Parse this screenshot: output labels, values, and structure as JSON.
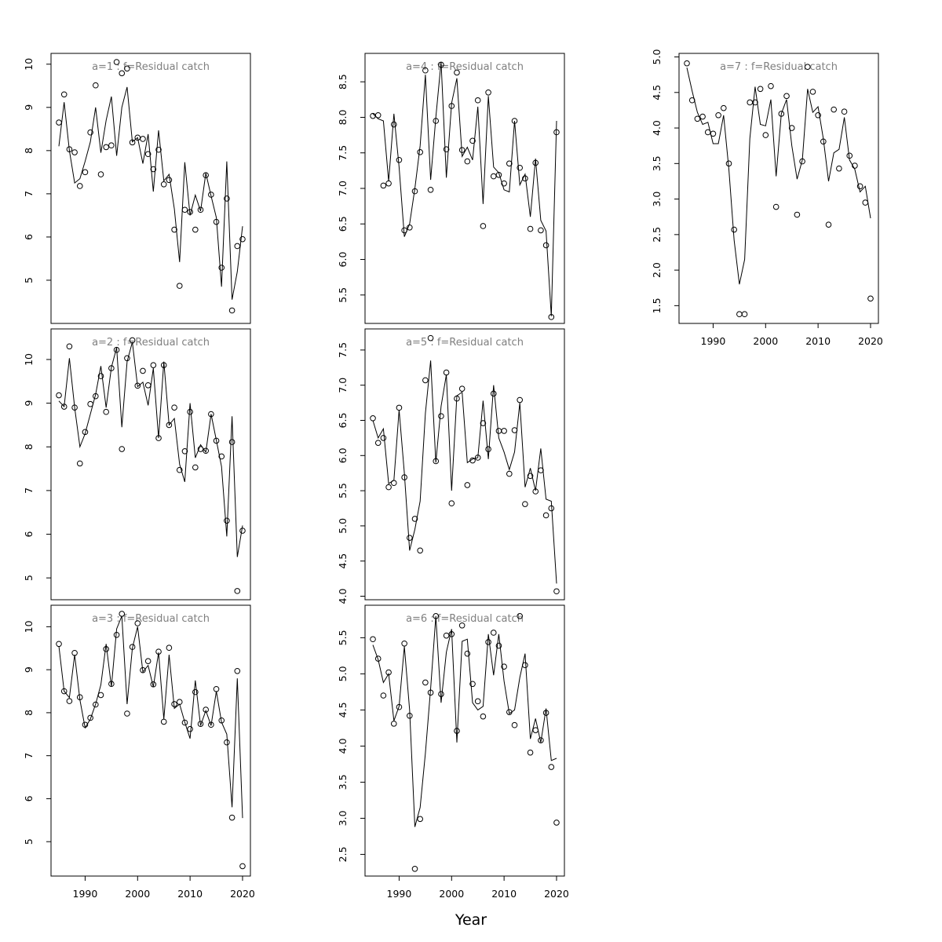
{
  "xlabel": "Year",
  "colors": {
    "line": "#000000",
    "point": "#000000",
    "title": "#7f7f7f",
    "frame": "#000000"
  },
  "chart_data": [
    {
      "type": "line+scatter",
      "title": "a=1  :  f=Residual catch",
      "xlabel": "",
      "ylabel": "",
      "xlim": [
        1983.5,
        2021.5
      ],
      "ylim": [
        4.0,
        10.25
      ],
      "yticks": [
        5,
        6,
        7,
        8,
        9,
        10
      ],
      "xticks": [],
      "observed": {
        "x": [
          1985,
          1986,
          1987,
          1988,
          1989,
          1990,
          1991,
          1992,
          1993,
          1994,
          1995,
          1996,
          1997,
          1998,
          1999,
          2000,
          2001,
          2002,
          2003,
          2004,
          2005,
          2006,
          2007,
          2008,
          2009,
          2010,
          2011,
          2012,
          2013,
          2014,
          2015,
          2016,
          2017,
          2018,
          2019,
          2020
        ],
        "y": [
          8.65,
          9.3,
          8.03,
          7.96,
          7.18,
          7.5,
          8.42,
          9.51,
          7.45,
          8.08,
          8.12,
          10.05,
          9.79,
          9.9,
          8.19,
          8.3,
          8.27,
          7.92,
          7.57,
          8.02,
          7.22,
          7.32,
          6.17,
          4.87,
          6.63,
          6.58,
          6.17,
          6.63,
          7.43,
          6.98,
          6.35,
          5.29,
          6.89,
          4.3,
          5.79,
          5.95
        ]
      },
      "fitted": {
        "x": [
          1985,
          1986,
          1987,
          1988,
          1989,
          1990,
          1991,
          1992,
          1993,
          1994,
          1995,
          1996,
          1997,
          1998,
          1999,
          2000,
          2001,
          2002,
          2003,
          2004,
          2005,
          2006,
          2007,
          2008,
          2009,
          2010,
          2011,
          2012,
          2013,
          2014,
          2015,
          2016,
          2017,
          2018,
          2019,
          2020
        ],
        "y": [
          8.1,
          9.12,
          8.0,
          7.25,
          7.35,
          7.75,
          8.2,
          9.0,
          7.95,
          8.7,
          9.25,
          7.88,
          9.0,
          9.47,
          8.2,
          8.3,
          7.7,
          8.38,
          7.05,
          8.47,
          7.3,
          7.45,
          6.65,
          5.42,
          7.73,
          6.5,
          6.97,
          6.6,
          7.48,
          6.95,
          6.45,
          4.85,
          7.75,
          4.55,
          5.2,
          6.25
        ]
      }
    },
    {
      "type": "line+scatter",
      "title": "a=2  :  f=Residual catch",
      "xlabel": "",
      "ylabel": "",
      "xlim": [
        1983.5,
        2021.5
      ],
      "ylim": [
        4.5,
        10.7
      ],
      "yticks": [
        5,
        6,
        7,
        8,
        9,
        10
      ],
      "xticks": [],
      "observed": {
        "x": [
          1985,
          1986,
          1987,
          1988,
          1989,
          1990,
          1991,
          1992,
          1993,
          1994,
          1995,
          1996,
          1997,
          1998,
          1999,
          2000,
          2001,
          2002,
          2003,
          2004,
          2005,
          2006,
          2007,
          2008,
          2009,
          2010,
          2011,
          2012,
          2013,
          2014,
          2015,
          2016,
          2017,
          2018,
          2019,
          2020
        ],
        "y": [
          9.18,
          8.92,
          10.3,
          8.9,
          7.62,
          8.34,
          8.98,
          9.16,
          9.62,
          8.8,
          9.8,
          10.22,
          7.95,
          10.03,
          10.44,
          9.4,
          9.74,
          9.41,
          9.87,
          8.2,
          9.87,
          8.5,
          8.9,
          7.47,
          7.9,
          8.8,
          7.53,
          7.95,
          7.91,
          8.75,
          8.14,
          7.78,
          6.31,
          8.11,
          4.7,
          6.08
        ]
      },
      "fitted": {
        "x": [
          1985,
          1986,
          1987,
          1988,
          1989,
          1990,
          1991,
          1992,
          1993,
          1994,
          1995,
          1996,
          1997,
          1998,
          1999,
          2000,
          2001,
          2002,
          2003,
          2004,
          2005,
          2006,
          2007,
          2008,
          2009,
          2010,
          2011,
          2012,
          2013,
          2014,
          2015,
          2016,
          2017,
          2018,
          2019,
          2020
        ],
        "y": [
          9.05,
          8.92,
          10.03,
          8.9,
          8.0,
          8.3,
          8.75,
          9.2,
          9.85,
          8.9,
          9.82,
          10.27,
          8.45,
          9.95,
          10.4,
          9.38,
          9.48,
          8.95,
          9.8,
          8.2,
          9.95,
          8.5,
          8.65,
          7.6,
          7.2,
          9.0,
          7.75,
          8.05,
          7.88,
          8.75,
          8.15,
          7.55,
          5.95,
          8.7,
          5.48,
          6.2
        ]
      }
    },
    {
      "type": "line+scatter",
      "title": "a=3  :  f=Residual catch",
      "xlabel": "",
      "ylabel": "",
      "xlim": [
        1983.5,
        2021.5
      ],
      "ylim": [
        4.2,
        10.5
      ],
      "yticks": [
        5,
        6,
        7,
        8,
        9,
        10
      ],
      "xticks": [
        1990,
        2000,
        2010,
        2020
      ],
      "observed": {
        "x": [
          1985,
          1986,
          1987,
          1988,
          1989,
          1990,
          1991,
          1992,
          1993,
          1994,
          1995,
          1996,
          1997,
          1998,
          1999,
          2000,
          2001,
          2002,
          2003,
          2004,
          2005,
          2006,
          2007,
          2008,
          2009,
          2010,
          2011,
          2012,
          2013,
          2014,
          2015,
          2016,
          2017,
          2018,
          2019,
          2020
        ],
        "y": [
          9.6,
          8.5,
          8.27,
          9.39,
          8.36,
          7.72,
          7.88,
          8.19,
          8.41,
          9.48,
          8.67,
          9.81,
          10.3,
          7.98,
          9.53,
          10.08,
          8.99,
          9.2,
          8.66,
          9.42,
          7.79,
          9.51,
          8.2,
          8.25,
          7.77,
          7.62,
          8.48,
          7.74,
          8.07,
          7.72,
          8.55,
          7.82,
          7.31,
          5.56,
          8.97,
          4.43
        ]
      },
      "fitted": {
        "x": [
          1985,
          1986,
          1987,
          1988,
          1989,
          1990,
          1991,
          1992,
          1993,
          1994,
          1995,
          1996,
          1997,
          1998,
          1999,
          2000,
          2001,
          2002,
          2003,
          2004,
          2005,
          2006,
          2007,
          2008,
          2009,
          2010,
          2011,
          2012,
          2013,
          2014,
          2015,
          2016,
          2017,
          2018,
          2019,
          2020
        ],
        "y": [
          9.55,
          8.5,
          8.35,
          9.35,
          8.3,
          7.65,
          7.85,
          8.2,
          8.65,
          9.6,
          8.6,
          9.95,
          10.25,
          8.2,
          9.5,
          10.0,
          8.95,
          9.1,
          8.6,
          9.4,
          7.85,
          9.35,
          8.1,
          8.2,
          7.78,
          7.4,
          8.75,
          7.7,
          8.05,
          7.7,
          8.5,
          7.78,
          7.5,
          5.8,
          8.8,
          5.55
        ]
      }
    },
    {
      "type": "line+scatter",
      "title": "a=4  :  f=Residual catch",
      "xlabel": "",
      "ylabel": "",
      "xlim": [
        1983.5,
        2021.5
      ],
      "ylim": [
        5.1,
        8.9
      ],
      "yticks": [
        5.5,
        6.0,
        6.5,
        7.0,
        7.5,
        8.0,
        8.5
      ],
      "xticks": [],
      "observed": {
        "x": [
          1985,
          1986,
          1987,
          1988,
          1989,
          1990,
          1991,
          1992,
          1993,
          1994,
          1995,
          1996,
          1997,
          1998,
          1999,
          2000,
          2001,
          2002,
          2003,
          2004,
          2005,
          2006,
          2007,
          2008,
          2009,
          2010,
          2011,
          2012,
          2013,
          2014,
          2015,
          2016,
          2017,
          2018,
          2019,
          2020
        ],
        "y": [
          8.02,
          8.03,
          7.04,
          7.07,
          7.9,
          7.4,
          6.41,
          6.45,
          6.96,
          7.51,
          8.66,
          6.98,
          7.95,
          8.74,
          7.55,
          8.16,
          8.63,
          7.54,
          7.38,
          7.67,
          8.24,
          6.47,
          8.35,
          7.17,
          7.19,
          7.07,
          7.35,
          7.95,
          7.29,
          7.14,
          6.43,
          7.36,
          6.41,
          6.2,
          5.19,
          7.79
        ]
      },
      "fitted": {
        "x": [
          1985,
          1986,
          1987,
          1988,
          1989,
          1990,
          1991,
          1992,
          1993,
          1994,
          1995,
          1996,
          1997,
          1998,
          1999,
          2000,
          2001,
          2002,
          2003,
          2004,
          2005,
          2006,
          2007,
          2008,
          2009,
          2010,
          2011,
          2012,
          2013,
          2014,
          2015,
          2016,
          2017,
          2018,
          2019,
          2020
        ],
        "y": [
          8.05,
          7.98,
          7.95,
          7.1,
          8.05,
          7.3,
          6.32,
          6.5,
          7.0,
          7.6,
          8.6,
          7.12,
          8.0,
          8.78,
          7.15,
          8.2,
          8.55,
          7.45,
          7.58,
          7.4,
          8.15,
          6.78,
          8.3,
          7.3,
          7.22,
          6.98,
          6.95,
          7.95,
          7.05,
          7.2,
          6.6,
          7.42,
          6.55,
          6.4,
          5.2,
          7.95
        ]
      }
    },
    {
      "type": "line+scatter",
      "title": "a=5  :  f=Residual catch",
      "xlabel": "",
      "ylabel": "",
      "xlim": [
        1983.5,
        2021.5
      ],
      "ylim": [
        3.95,
        7.8
      ],
      "yticks": [
        4.0,
        4.5,
        5.0,
        5.5,
        6.0,
        6.5,
        7.0,
        7.5
      ],
      "xticks": [],
      "observed": {
        "x": [
          1985,
          1986,
          1987,
          1988,
          1989,
          1990,
          1991,
          1992,
          1993,
          1994,
          1995,
          1996,
          1997,
          1998,
          1999,
          2000,
          2001,
          2002,
          2003,
          2004,
          2005,
          2006,
          2007,
          2008,
          2009,
          2010,
          2011,
          2012,
          2013,
          2014,
          2015,
          2016,
          2017,
          2018,
          2019,
          2020
        ],
        "y": [
          6.53,
          6.18,
          6.25,
          5.55,
          5.61,
          6.68,
          5.69,
          4.83,
          5.1,
          4.65,
          7.07,
          7.67,
          5.92,
          6.56,
          7.18,
          5.32,
          6.81,
          6.95,
          5.58,
          5.93,
          5.97,
          6.46,
          6.09,
          6.88,
          6.35,
          6.35,
          5.74,
          6.36,
          6.79,
          5.31,
          5.71,
          5.49,
          5.79,
          5.15,
          5.25,
          4.07
        ]
      },
      "fitted": {
        "x": [
          1985,
          1986,
          1987,
          1988,
          1989,
          1990,
          1991,
          1992,
          1993,
          1994,
          1995,
          1996,
          1997,
          1998,
          1999,
          2000,
          2001,
          2002,
          2003,
          2004,
          2005,
          2006,
          2007,
          2008,
          2009,
          2010,
          2011,
          2012,
          2013,
          2014,
          2015,
          2016,
          2017,
          2018,
          2019,
          2020
        ],
        "y": [
          6.5,
          6.25,
          6.38,
          5.6,
          5.65,
          6.65,
          5.75,
          4.65,
          4.95,
          5.35,
          6.6,
          7.35,
          5.9,
          6.7,
          7.15,
          5.5,
          6.85,
          6.9,
          5.9,
          5.95,
          5.97,
          6.78,
          5.95,
          7.0,
          6.25,
          6.05,
          5.8,
          6.05,
          6.75,
          5.55,
          5.82,
          5.5,
          6.1,
          5.38,
          5.35,
          4.18
        ]
      }
    },
    {
      "type": "line+scatter",
      "title": "a=6  :  f=Residual catch",
      "xlabel": "",
      "ylabel": "",
      "xlim": [
        1983.5,
        2021.5
      ],
      "ylim": [
        2.2,
        5.95
      ],
      "yticks": [
        2.5,
        3.0,
        3.5,
        4.0,
        4.5,
        5.0,
        5.5
      ],
      "xticks": [
        1990,
        2000,
        2010,
        2020
      ],
      "observed": {
        "x": [
          1985,
          1986,
          1987,
          1988,
          1989,
          1990,
          1991,
          1992,
          1993,
          1994,
          1995,
          1996,
          1997,
          1998,
          1999,
          2000,
          2001,
          2002,
          2003,
          2004,
          2005,
          2006,
          2007,
          2008,
          2009,
          2010,
          2011,
          2012,
          2013,
          2014,
          2015,
          2016,
          2017,
          2018,
          2019,
          2020
        ],
        "y": [
          5.48,
          5.21,
          4.7,
          5.02,
          4.31,
          4.54,
          5.42,
          4.42,
          2.3,
          2.99,
          4.88,
          4.74,
          5.8,
          4.72,
          5.53,
          5.55,
          4.21,
          5.67,
          5.28,
          4.86,
          4.62,
          4.41,
          5.44,
          5.57,
          5.39,
          5.1,
          4.47,
          4.29,
          5.8,
          5.12,
          3.91,
          4.22,
          4.08,
          4.46,
          3.71,
          2.94
        ]
      },
      "fitted": {
        "x": [
          1985,
          1986,
          1987,
          1988,
          1989,
          1990,
          1991,
          1992,
          1993,
          1994,
          1995,
          1996,
          1997,
          1998,
          1999,
          2000,
          2001,
          2002,
          2003,
          2004,
          2005,
          2006,
          2007,
          2008,
          2009,
          2010,
          2011,
          2012,
          2013,
          2014,
          2015,
          2016,
          2017,
          2018,
          2019,
          2020
        ],
        "y": [
          5.4,
          5.2,
          4.88,
          5.0,
          4.35,
          4.55,
          5.38,
          4.5,
          2.88,
          3.15,
          3.9,
          4.8,
          5.8,
          4.6,
          5.3,
          5.62,
          4.05,
          5.45,
          5.48,
          4.6,
          4.5,
          4.55,
          5.55,
          4.98,
          5.55,
          4.9,
          4.45,
          4.5,
          4.95,
          5.28,
          4.1,
          4.38,
          4.05,
          4.52,
          3.8,
          3.83
        ]
      }
    },
    {
      "type": "line+scatter",
      "title": "a=7  :  f=Residual catch",
      "xlabel": "",
      "ylabel": "",
      "xlim": [
        1983.5,
        2021.5
      ],
      "ylim": [
        1.25,
        5.05
      ],
      "yticks": [
        1.5,
        2.0,
        2.5,
        3.0,
        3.5,
        4.0,
        4.5,
        5.0
      ],
      "xticks": [
        1990,
        2000,
        2010,
        2020
      ],
      "observed": {
        "x": [
          1985,
          1986,
          1987,
          1988,
          1989,
          1990,
          1991,
          1992,
          1993,
          1994,
          1995,
          1996,
          1997,
          1998,
          1999,
          2000,
          2001,
          2002,
          2003,
          2004,
          2005,
          2006,
          2007,
          2008,
          2009,
          2010,
          2011,
          2012,
          2013,
          2014,
          2015,
          2016,
          2017,
          2018,
          2019,
          2020
        ],
        "y": [
          4.91,
          4.39,
          4.13,
          4.16,
          3.94,
          3.92,
          4.18,
          4.28,
          3.5,
          2.57,
          1.38,
          1.38,
          4.36,
          4.36,
          4.55,
          3.9,
          4.59,
          2.89,
          4.2,
          4.45,
          4.0,
          2.78,
          3.53,
          4.86,
          4.51,
          4.18,
          3.81,
          2.64,
          4.26,
          3.43,
          4.23,
          3.61,
          3.47,
          3.18,
          2.95,
          1.6
        ]
      },
      "fitted": {
        "x": [
          1985,
          1986,
          1987,
          1988,
          1989,
          1990,
          1991,
          1992,
          1993,
          1994,
          1995,
          1996,
          1997,
          1998,
          1999,
          2000,
          2001,
          2002,
          2003,
          2004,
          2005,
          2006,
          2007,
          2008,
          2009,
          2010,
          2011,
          2012,
          2013,
          2014,
          2015,
          2016,
          2017,
          2018,
          2019,
          2020
        ],
        "y": [
          4.85,
          4.52,
          4.22,
          4.05,
          4.08,
          3.78,
          3.78,
          4.18,
          3.42,
          2.42,
          1.8,
          2.15,
          3.85,
          4.58,
          4.05,
          4.03,
          4.4,
          3.32,
          4.2,
          4.4,
          3.75,
          3.28,
          3.55,
          4.55,
          4.22,
          4.3,
          3.85,
          3.25,
          3.65,
          3.7,
          4.15,
          3.55,
          3.42,
          3.1,
          3.18,
          2.73
        ]
      }
    }
  ]
}
